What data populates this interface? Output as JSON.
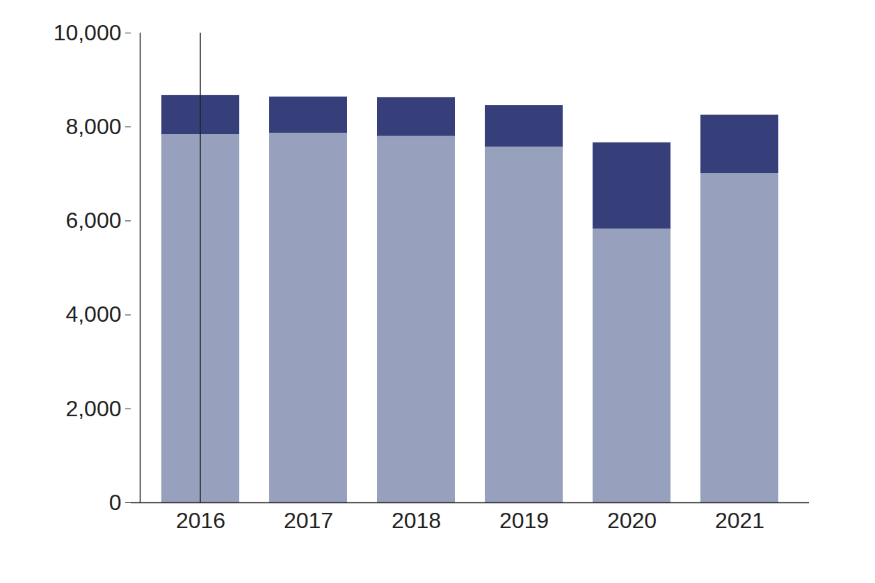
{
  "chart_data": {
    "type": "bar",
    "stacked": true,
    "categories": [
      "2016",
      "2017",
      "2018",
      "2019",
      "2020",
      "2021"
    ],
    "series": [
      {
        "color": "#97a1bd",
        "values": [
          7840,
          7870,
          7800,
          7575,
          5830,
          7010
        ]
      },
      {
        "color": "#373f7b",
        "values": [
          830,
          770,
          825,
          885,
          1835,
          1245
        ]
      }
    ],
    "ylim": [
      0,
      10000
    ],
    "yticks": [
      0,
      {
        "value": 2000,
        "label": "2,000"
      },
      {
        "value": 4000,
        "label": "4,000"
      },
      {
        "value": 6000,
        "label": "6,000"
      },
      {
        "value": 8000,
        "label": "8,000"
      },
      {
        "value": 10000,
        "label": "10,000"
      }
    ],
    "grid": false
  }
}
